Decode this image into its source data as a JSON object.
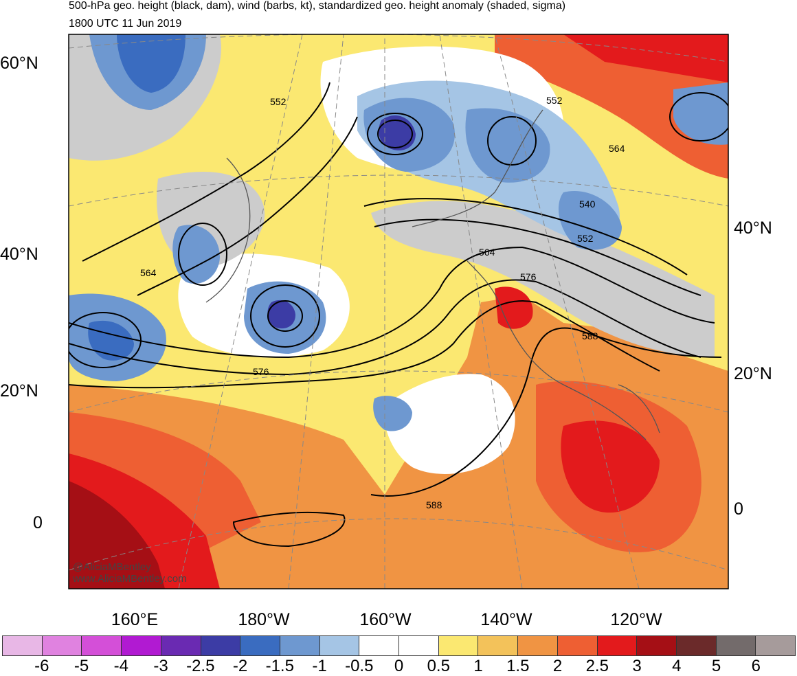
{
  "title": "500-hPa geo. height (black, dam), wind (barbs, kt), standardized geo. height anomaly (shaded, sigma)",
  "valid_time": "1800 UTC 11 Jun 2019",
  "lat_labels_left": [
    "60°N",
    "40°N",
    "20°N",
    "0"
  ],
  "lat_labels_right": [
    "40°N",
    "20°N",
    "0"
  ],
  "lon_labels": [
    "160°E",
    "180°W",
    "160°W",
    "140°W",
    "120°W"
  ],
  "contour_labels": [
    "552",
    "552",
    "564",
    "540",
    "552",
    "564",
    "564",
    "576",
    "576",
    "588",
    "588"
  ],
  "watermark": [
    "@AliciaMBentley",
    "www.AliciaMBentley.com"
  ],
  "colorbar": {
    "labels": [
      "-6",
      "-5",
      "-4",
      "-3",
      "-2.5",
      "-2",
      "-1.5",
      "-1",
      "-0.5",
      "0",
      "0.5",
      "1",
      "1.5",
      "2",
      "2.5",
      "3",
      "4",
      "5",
      "6"
    ],
    "colors": [
      "#e8b7e6",
      "#e082e0",
      "#d44fd8",
      "#b11ad2",
      "#6a2ab2",
      "#3c3ca5",
      "#3a6cc0",
      "#6e98d0",
      "#a5c5e5",
      "#ffffff",
      "#ffffff",
      "#fbe871",
      "#f3c25a",
      "#f09443",
      "#ee5f33",
      "#e31a1c",
      "#a50f15",
      "#6b2a2a",
      "#736b6b",
      "#a69b9b"
    ]
  }
}
